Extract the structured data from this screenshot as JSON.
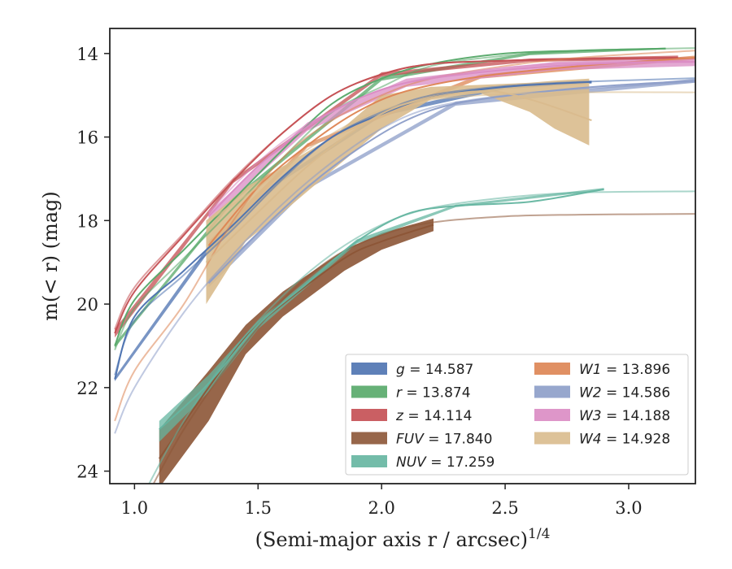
{
  "chart_data": {
    "type": "line",
    "xlabel": "(Semi-major axis r / arcsec)",
    "xlabel_exponent": "1/4",
    "ylabel": "m(< r) (mag)",
    "xlim": [
      0.9,
      3.27
    ],
    "ylim": [
      24.3,
      13.4
    ],
    "y_inverted": true,
    "x_ticks": [
      1.0,
      1.5,
      2.0,
      2.5,
      3.0
    ],
    "x_tick_labels": [
      "1.0",
      "1.5",
      "2.0",
      "2.5",
      "3.0"
    ],
    "y_ticks": [
      14,
      16,
      18,
      20,
      22,
      24
    ],
    "y_tick_labels": [
      "14",
      "16",
      "18",
      "20",
      "22",
      "24"
    ],
    "grid": false,
    "legend_position": "lower-right",
    "series": [
      {
        "name": "g = 14.587",
        "label_var": "g",
        "label_val": "14.587",
        "color": "#4c72b0",
        "fit": [
          [
            0.92,
            21.7
          ],
          [
            1.0,
            20.4
          ],
          [
            1.2,
            19.3
          ],
          [
            1.4,
            18.2
          ],
          [
            1.6,
            17.0
          ],
          [
            1.8,
            16.0
          ],
          [
            2.0,
            15.4
          ],
          [
            2.2,
            15.0
          ],
          [
            2.5,
            14.78
          ],
          [
            2.8,
            14.68
          ],
          [
            3.0,
            14.64
          ],
          [
            3.27,
            14.59
          ]
        ],
        "data": [
          [
            0.92,
            21.8
          ],
          [
            1.0,
            20.3
          ],
          [
            1.2,
            19.2
          ],
          [
            1.4,
            18.1
          ],
          [
            1.6,
            16.95
          ],
          [
            1.8,
            16.0
          ],
          [
            2.0,
            15.45
          ],
          [
            2.2,
            15.05
          ],
          [
            2.5,
            14.8
          ],
          [
            2.85,
            14.68
          ]
        ],
        "band": [
          [
            0.92,
            21.75,
            21.85
          ],
          [
            1.3,
            18.6,
            18.75
          ],
          [
            1.6,
            16.95,
            17.05
          ],
          [
            2.0,
            15.4,
            15.5
          ],
          [
            2.5,
            14.75,
            14.85
          ],
          [
            2.85,
            14.65,
            14.72
          ]
        ]
      },
      {
        "name": "r = 13.874",
        "label_var": "r",
        "label_val": "13.874",
        "color": "#55a868",
        "fit": [
          [
            0.92,
            21.1
          ],
          [
            1.0,
            20.1
          ],
          [
            1.2,
            18.9
          ],
          [
            1.4,
            17.7
          ],
          [
            1.6,
            16.5
          ],
          [
            1.8,
            15.4
          ],
          [
            2.0,
            14.8
          ],
          [
            2.2,
            14.3
          ],
          [
            2.5,
            14.05
          ],
          [
            2.8,
            13.93
          ],
          [
            3.0,
            13.9
          ],
          [
            3.27,
            13.87
          ]
        ],
        "data": [
          [
            0.92,
            21.0
          ],
          [
            1.0,
            19.9
          ],
          [
            1.2,
            18.7
          ],
          [
            1.4,
            17.5
          ],
          [
            1.6,
            16.3
          ],
          [
            1.8,
            15.2
          ],
          [
            2.0,
            14.6
          ],
          [
            2.2,
            14.25
          ],
          [
            2.5,
            14.0
          ],
          [
            2.8,
            13.93
          ],
          [
            3.15,
            13.88
          ]
        ],
        "band": [
          [
            0.92,
            20.95,
            21.05
          ],
          [
            1.4,
            17.45,
            17.55
          ],
          [
            2.0,
            14.55,
            14.65
          ],
          [
            2.6,
            13.98,
            14.04
          ],
          [
            3.15,
            13.86,
            13.9
          ]
        ]
      },
      {
        "name": "z = 14.114",
        "label_var": "z",
        "label_val": "14.114",
        "color": "#c44e52",
        "fit": [
          [
            0.92,
            20.6
          ],
          [
            1.0,
            19.6
          ],
          [
            1.2,
            18.3
          ],
          [
            1.4,
            17.0
          ],
          [
            1.6,
            15.9
          ],
          [
            1.8,
            15.0
          ],
          [
            2.0,
            14.5
          ],
          [
            2.2,
            14.25
          ],
          [
            2.5,
            14.17
          ],
          [
            2.8,
            14.13
          ],
          [
            3.27,
            14.11
          ]
        ],
        "data": [
          [
            0.92,
            20.7
          ],
          [
            1.0,
            19.7
          ],
          [
            1.2,
            18.35
          ],
          [
            1.4,
            17.05
          ],
          [
            1.6,
            15.9
          ],
          [
            1.8,
            15.0
          ],
          [
            2.0,
            14.5
          ],
          [
            2.2,
            14.25
          ],
          [
            2.5,
            14.17
          ],
          [
            2.8,
            14.13
          ],
          [
            3.2,
            14.1
          ]
        ],
        "band": [
          [
            0.92,
            20.6,
            20.8
          ],
          [
            1.4,
            17.0,
            17.1
          ],
          [
            2.0,
            14.45,
            14.55
          ],
          [
            2.6,
            14.12,
            14.2
          ],
          [
            3.2,
            14.05,
            14.14
          ]
        ]
      },
      {
        "name": "FUV = 17.840",
        "label_var": "FUV",
        "label_val": "17.840",
        "color": "#8c5536",
        "fit": [
          [
            1.05,
            24.6
          ],
          [
            1.2,
            23.0
          ],
          [
            1.4,
            21.3
          ],
          [
            1.6,
            19.9
          ],
          [
            1.8,
            18.9
          ],
          [
            2.0,
            18.35
          ],
          [
            2.2,
            18.05
          ],
          [
            2.5,
            17.9
          ],
          [
            2.8,
            17.86
          ],
          [
            3.27,
            17.84
          ]
        ],
        "data": [
          [
            1.1,
            23.7
          ],
          [
            1.3,
            22.0
          ],
          [
            1.45,
            20.8
          ],
          [
            1.6,
            20.0
          ],
          [
            1.85,
            18.9
          ],
          [
            2.0,
            18.5
          ],
          [
            2.21,
            18.1
          ]
        ],
        "band": [
          [
            1.1,
            23.0,
            24.4
          ],
          [
            1.3,
            21.6,
            22.8
          ],
          [
            1.45,
            20.5,
            21.2
          ],
          [
            1.6,
            19.7,
            20.3
          ],
          [
            1.85,
            18.7,
            19.2
          ],
          [
            2.0,
            18.3,
            18.7
          ],
          [
            2.21,
            17.95,
            18.25
          ]
        ]
      },
      {
        "name": "NUV = 17.259",
        "label_var": "NUV",
        "label_val": "17.259",
        "color": "#64b5a0",
        "fit": [
          [
            1.05,
            24.4
          ],
          [
            1.2,
            22.8
          ],
          [
            1.4,
            21.1
          ],
          [
            1.6,
            19.8
          ],
          [
            1.8,
            18.8
          ],
          [
            2.0,
            18.1
          ],
          [
            2.2,
            17.7
          ],
          [
            2.5,
            17.45
          ],
          [
            2.8,
            17.33
          ],
          [
            3.27,
            17.3
          ]
        ],
        "data": [
          [
            1.1,
            23.0
          ],
          [
            1.3,
            21.9
          ],
          [
            1.5,
            20.5
          ],
          [
            1.7,
            19.5
          ],
          [
            1.9,
            18.5
          ],
          [
            2.1,
            17.85
          ],
          [
            2.3,
            17.65
          ],
          [
            2.6,
            17.55
          ],
          [
            2.9,
            17.25
          ]
        ],
        "band": [
          [
            1.1,
            22.8,
            23.3
          ],
          [
            1.3,
            21.7,
            22.1
          ],
          [
            1.5,
            20.4,
            20.6
          ],
          [
            1.9,
            18.45,
            18.55
          ],
          [
            2.3,
            17.62,
            17.68
          ],
          [
            2.9,
            17.22,
            17.28
          ]
        ]
      },
      {
        "name": "W1 = 13.896",
        "label_var": "W1",
        "label_val": "13.896",
        "color": "#dd8452",
        "fit": [
          [
            0.92,
            22.8
          ],
          [
            1.0,
            21.6
          ],
          [
            1.2,
            20.0
          ],
          [
            1.4,
            18.0
          ],
          [
            1.6,
            16.5
          ],
          [
            1.8,
            15.6
          ],
          [
            2.0,
            15.0
          ],
          [
            2.2,
            14.6
          ],
          [
            2.5,
            14.3
          ],
          [
            2.8,
            14.1
          ],
          [
            3.27,
            13.93
          ]
        ],
        "data": [
          [
            1.3,
            18.6
          ],
          [
            1.5,
            17.2
          ],
          [
            1.7,
            16.2
          ],
          [
            1.9,
            15.4
          ],
          [
            2.1,
            14.9
          ],
          [
            2.4,
            14.55
          ],
          [
            2.8,
            14.3
          ],
          [
            3.27,
            14.1
          ]
        ],
        "band": [
          [
            1.3,
            18.5,
            18.7
          ],
          [
            1.7,
            16.15,
            16.25
          ],
          [
            2.4,
            14.5,
            14.6
          ],
          [
            3.27,
            14.05,
            14.15
          ]
        ]
      },
      {
        "name": "W2 = 14.586",
        "label_var": "W2",
        "label_val": "14.586",
        "color": "#8c9dc8",
        "fit": [
          [
            0.92,
            23.1
          ],
          [
            1.0,
            22.0
          ],
          [
            1.2,
            20.2
          ],
          [
            1.4,
            18.8
          ],
          [
            1.6,
            17.6
          ],
          [
            1.8,
            16.6
          ],
          [
            2.0,
            15.8
          ],
          [
            2.2,
            15.3
          ],
          [
            2.5,
            15.0
          ],
          [
            2.8,
            14.85
          ],
          [
            3.27,
            14.68
          ]
        ],
        "data": [
          [
            1.3,
            19.5
          ],
          [
            1.5,
            18.3
          ],
          [
            1.7,
            17.2
          ],
          [
            1.9,
            16.3
          ],
          [
            2.1,
            15.6
          ],
          [
            2.3,
            15.2
          ],
          [
            2.6,
            14.95
          ],
          [
            2.9,
            14.78
          ],
          [
            3.27,
            14.65
          ]
        ],
        "band": [
          [
            1.3,
            19.4,
            19.6
          ],
          [
            1.7,
            17.15,
            17.25
          ],
          [
            2.3,
            15.15,
            15.25
          ],
          [
            3.27,
            14.6,
            14.7
          ]
        ]
      },
      {
        "name": "W3 = 14.188",
        "label_var": "W3",
        "label_val": "14.188",
        "color": "#da8bc3",
        "fit": [
          [
            1.3,
            17.8
          ],
          [
            1.5,
            16.6
          ],
          [
            1.7,
            15.7
          ],
          [
            1.9,
            15.1
          ],
          [
            2.1,
            14.7
          ],
          [
            2.4,
            14.4
          ],
          [
            2.7,
            14.25
          ],
          [
            3.0,
            14.2
          ],
          [
            3.27,
            14.19
          ]
        ],
        "data": [
          [
            1.3,
            17.9
          ],
          [
            1.5,
            16.7
          ],
          [
            1.7,
            15.75
          ],
          [
            1.9,
            15.1
          ],
          [
            2.1,
            14.7
          ],
          [
            2.4,
            14.45
          ],
          [
            2.7,
            14.3
          ],
          [
            3.0,
            14.22
          ],
          [
            3.27,
            14.2
          ]
        ],
        "band": [
          [
            1.3,
            17.8,
            18.0
          ],
          [
            1.7,
            15.65,
            15.85
          ],
          [
            2.1,
            14.6,
            14.8
          ],
          [
            2.7,
            14.2,
            14.4
          ],
          [
            3.27,
            14.1,
            14.3
          ]
        ]
      },
      {
        "name": "W4 = 14.928",
        "label_var": "W4",
        "label_val": "14.928",
        "color": "#d9bb8d",
        "fit": [
          [
            1.3,
            18.0
          ],
          [
            1.5,
            17.2
          ],
          [
            1.7,
            16.3
          ],
          [
            1.9,
            15.6
          ],
          [
            2.1,
            15.2
          ],
          [
            2.4,
            15.0
          ],
          [
            2.8,
            14.93
          ],
          [
            3.27,
            14.93
          ]
        ],
        "data": [
          [
            1.29,
            19.0
          ],
          [
            1.5,
            17.8
          ],
          [
            1.7,
            16.7
          ],
          [
            1.9,
            15.8
          ],
          [
            2.1,
            15.2
          ],
          [
            2.4,
            14.9
          ],
          [
            2.6,
            15.1
          ],
          [
            2.85,
            15.6
          ]
        ],
        "band": [
          [
            1.29,
            18.0,
            20.0
          ],
          [
            1.45,
            17.2,
            18.5
          ],
          [
            1.6,
            16.7,
            17.8
          ],
          [
            1.8,
            16.0,
            16.8
          ],
          [
            2.0,
            15.0,
            15.8
          ],
          [
            2.2,
            14.8,
            15.1
          ],
          [
            2.4,
            14.75,
            14.95
          ],
          [
            2.6,
            14.7,
            15.4
          ],
          [
            2.7,
            14.65,
            15.8
          ],
          [
            2.84,
            14.6,
            16.2
          ]
        ]
      }
    ]
  }
}
